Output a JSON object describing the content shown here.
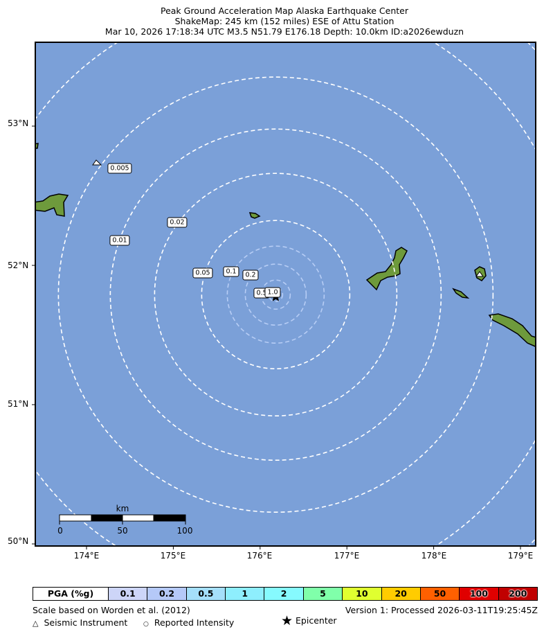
{
  "title": {
    "line1": "Peak Ground Acceleration Map Alaska Earthquake Center",
    "line2": "ShakeMap: 245 km (152 miles) ESE of Attu Station",
    "line3": "Mar 10, 2026 17:18:34 UTC M3.5 N51.79 E176.18 Depth: 10.0km ID:a2026ewduzn"
  },
  "map": {
    "ocean_color": "#7ba0d8",
    "land_color": "#6e9a3c",
    "epicenter": {
      "lat": 51.79,
      "lon": 176.18,
      "icon": "star-icon"
    },
    "lon_ticks": [
      "174°E",
      "175°E",
      "176°E",
      "177°E",
      "178°E",
      "179°E"
    ],
    "lat_ticks": [
      "53°N",
      "52°N",
      "51°N",
      "50°N"
    ],
    "contour_labels": [
      "0.005",
      "0.01",
      "0.02",
      "0.05",
      "0.1",
      "0.2",
      "0.5",
      "1.0"
    ],
    "scale_bar": {
      "unit": "km",
      "labels": [
        "0",
        "50",
        "100"
      ]
    }
  },
  "legend": {
    "header": "PGA (%g)",
    "bins": [
      {
        "label": "0.1",
        "color": "#cdd5f8"
      },
      {
        "label": "0.2",
        "color": "#b5c9f8"
      },
      {
        "label": "0.5",
        "color": "#a5dffa"
      },
      {
        "label": "1",
        "color": "#8eeefd"
      },
      {
        "label": "2",
        "color": "#86fafe"
      },
      {
        "label": "5",
        "color": "#80ffaa"
      },
      {
        "label": "10",
        "color": "#e0ff30"
      },
      {
        "label": "20",
        "color": "#ffcc00"
      },
      {
        "label": "50",
        "color": "#ff6000"
      },
      {
        "label": "100",
        "color": "#e00000"
      },
      {
        "label": "200",
        "color": "#c00000"
      }
    ]
  },
  "footer": {
    "scale_note": "Scale based on Worden et al. (2012)",
    "version": "Version 1: Processed 2026-03-11T19:25:45Z",
    "seismic_instrument": "Seismic Instrument",
    "reported_intensity": "Reported Intensity",
    "epicenter": "Epicenter"
  }
}
